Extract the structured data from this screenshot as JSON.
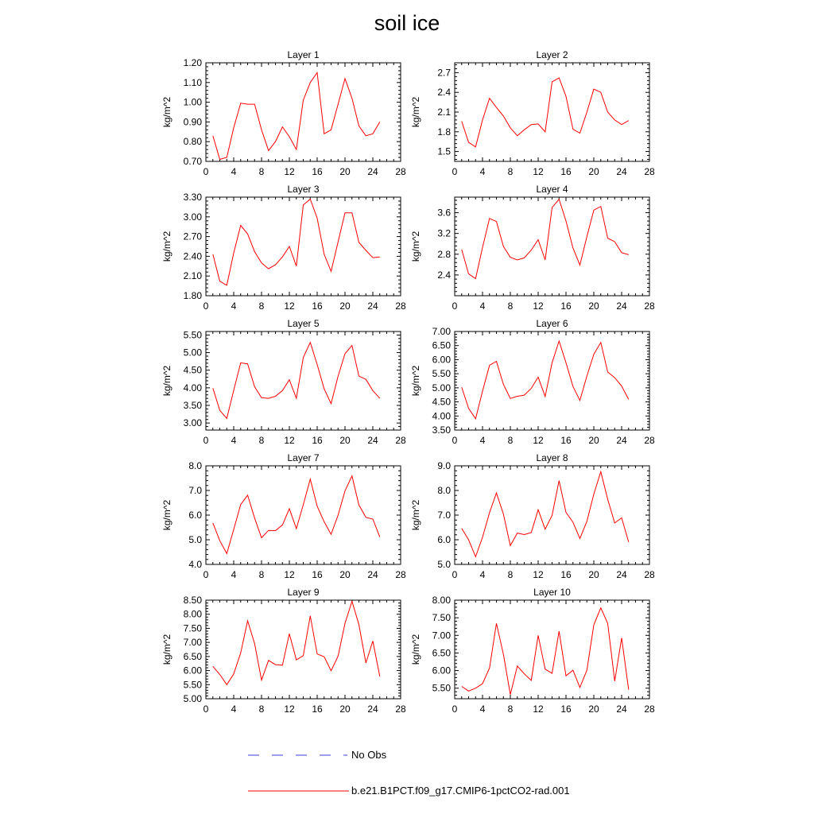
{
  "title": "soil ice",
  "legend": [
    {
      "label": "No Obs",
      "color": "#3b3bdc",
      "style": "dashed"
    },
    {
      "label": "b.e21.B1PCT.f09_g17.CMIP6-1pctCO2-rad.001",
      "color": "#ff0000",
      "style": "solid"
    }
  ],
  "chart_data": [
    {
      "type": "line",
      "title": "Layer 1",
      "ylabel": "kg/m^2",
      "xlim": [
        0,
        28
      ],
      "xticks": [
        0,
        4,
        8,
        12,
        16,
        20,
        24,
        28
      ],
      "ylim": [
        0.7,
        1.2
      ],
      "yticks": [
        0.7,
        0.8,
        0.9,
        1.0,
        1.1,
        1.2
      ],
      "ytick_labels": [
        "0.70",
        "0.80",
        "0.90",
        "1.00",
        "1.10",
        "1.20"
      ],
      "x": [
        1,
        2,
        3,
        4,
        5,
        6,
        7,
        8,
        9,
        10,
        11,
        12,
        13,
        14,
        15,
        16,
        17,
        18,
        19,
        20,
        21,
        22,
        23,
        24,
        25
      ],
      "series": [
        {
          "color": "#ff0000",
          "values": [
            0.83,
            0.71,
            0.72,
            0.87,
            0.995,
            0.99,
            0.99,
            0.86,
            0.755,
            0.8,
            0.875,
            0.825,
            0.76,
            1.01,
            1.1,
            1.15,
            0.84,
            0.86,
            0.99,
            1.12,
            1.02,
            0.88,
            0.83,
            0.84,
            0.9
          ]
        }
      ]
    },
    {
      "type": "line",
      "title": "Layer 2",
      "ylabel": "kg/m^2",
      "xlim": [
        0,
        28
      ],
      "xticks": [
        0,
        4,
        8,
        12,
        16,
        20,
        24,
        28
      ],
      "ylim": [
        1.35,
        2.85
      ],
      "yticks": [
        1.5,
        1.8,
        2.1,
        2.4,
        2.7
      ],
      "ytick_labels": [
        "1.5",
        "1.8",
        "2.1",
        "2.4",
        "2.7"
      ],
      "x": [
        1,
        2,
        3,
        4,
        5,
        6,
        7,
        8,
        9,
        10,
        11,
        12,
        13,
        14,
        15,
        16,
        17,
        18,
        19,
        20,
        21,
        22,
        23,
        24,
        25
      ],
      "series": [
        {
          "color": "#ff0000",
          "values": [
            1.96,
            1.64,
            1.57,
            1.98,
            2.31,
            2.17,
            2.04,
            1.86,
            1.74,
            1.83,
            1.91,
            1.92,
            1.8,
            2.56,
            2.62,
            2.34,
            1.84,
            1.78,
            2.1,
            2.45,
            2.4,
            2.1,
            1.98,
            1.91,
            1.97
          ]
        }
      ]
    },
    {
      "type": "line",
      "title": "Layer 3",
      "ylabel": "kg/m^2",
      "xlim": [
        0,
        28
      ],
      "xticks": [
        0,
        4,
        8,
        12,
        16,
        20,
        24,
        28
      ],
      "ylim": [
        1.8,
        3.3
      ],
      "yticks": [
        1.8,
        2.1,
        2.4,
        2.7,
        3.0,
        3.3
      ],
      "ytick_labels": [
        "1.80",
        "2.10",
        "2.40",
        "2.70",
        "3.00",
        "3.30"
      ],
      "x": [
        1,
        2,
        3,
        4,
        5,
        6,
        7,
        8,
        9,
        10,
        11,
        12,
        13,
        14,
        15,
        16,
        17,
        18,
        19,
        20,
        21,
        22,
        23,
        24,
        25
      ],
      "series": [
        {
          "color": "#ff0000",
          "values": [
            2.43,
            2.02,
            1.96,
            2.45,
            2.87,
            2.74,
            2.47,
            2.3,
            2.21,
            2.27,
            2.39,
            2.55,
            2.25,
            3.18,
            3.27,
            2.98,
            2.43,
            2.17,
            2.62,
            3.06,
            3.06,
            2.61,
            2.49,
            2.38,
            2.39
          ]
        }
      ]
    },
    {
      "type": "line",
      "title": "Layer 4",
      "ylabel": "kg/m^2",
      "xlim": [
        0,
        28
      ],
      "xticks": [
        0,
        4,
        8,
        12,
        16,
        20,
        24,
        28
      ],
      "ylim": [
        2.0,
        3.9
      ],
      "yticks": [
        2.4,
        2.8,
        3.2,
        3.6
      ],
      "ytick_labels": [
        "2.4",
        "2.8",
        "3.2",
        "3.6"
      ],
      "x": [
        1,
        2,
        3,
        4,
        5,
        6,
        7,
        8,
        9,
        10,
        11,
        12,
        13,
        14,
        15,
        16,
        17,
        18,
        19,
        20,
        21,
        22,
        23,
        24,
        25
      ],
      "series": [
        {
          "color": "#ff0000",
          "values": [
            2.89,
            2.42,
            2.33,
            2.93,
            3.49,
            3.43,
            2.95,
            2.74,
            2.69,
            2.73,
            2.88,
            3.08,
            2.69,
            3.7,
            3.86,
            3.44,
            2.92,
            2.59,
            3.14,
            3.65,
            3.72,
            3.11,
            3.04,
            2.83,
            2.79
          ]
        }
      ]
    },
    {
      "type": "line",
      "title": "Layer 5",
      "ylabel": "kg/m^2",
      "xlim": [
        0,
        28
      ],
      "xticks": [
        0,
        4,
        8,
        12,
        16,
        20,
        24,
        28
      ],
      "ylim": [
        2.8,
        5.6
      ],
      "yticks": [
        3.0,
        3.5,
        4.0,
        4.5,
        5.0,
        5.5
      ],
      "ytick_labels": [
        "3.00",
        "3.50",
        "4.00",
        "4.50",
        "5.00",
        "5.50"
      ],
      "x": [
        1,
        2,
        3,
        4,
        5,
        6,
        7,
        8,
        9,
        10,
        11,
        12,
        13,
        14,
        15,
        16,
        17,
        18,
        19,
        20,
        21,
        22,
        23,
        24,
        25
      ],
      "series": [
        {
          "color": "#ff0000",
          "values": [
            3.99,
            3.36,
            3.13,
            3.93,
            4.71,
            4.68,
            4.03,
            3.72,
            3.7,
            3.76,
            3.92,
            4.23,
            3.7,
            4.86,
            5.29,
            4.66,
            3.97,
            3.55,
            4.33,
            4.97,
            5.2,
            4.33,
            4.24,
            3.92,
            3.7
          ]
        }
      ]
    },
    {
      "type": "line",
      "title": "Layer 6",
      "ylabel": "kg/m^2",
      "xlim": [
        0,
        28
      ],
      "xticks": [
        0,
        4,
        8,
        12,
        16,
        20,
        24,
        28
      ],
      "ylim": [
        3.5,
        7.0
      ],
      "yticks": [
        3.5,
        4.0,
        4.5,
        5.0,
        5.5,
        6.0,
        6.5,
        7.0
      ],
      "ytick_labels": [
        "3.50",
        "4.00",
        "4.50",
        "5.00",
        "5.50",
        "6.00",
        "6.50",
        "7.00"
      ],
      "x": [
        1,
        2,
        3,
        4,
        5,
        6,
        7,
        8,
        9,
        10,
        11,
        12,
        13,
        14,
        15,
        16,
        17,
        18,
        19,
        20,
        21,
        22,
        23,
        24,
        25
      ],
      "series": [
        {
          "color": "#ff0000",
          "values": [
            5.02,
            4.27,
            3.9,
            4.88,
            5.8,
            5.94,
            5.12,
            4.62,
            4.7,
            4.74,
            4.98,
            5.38,
            4.69,
            5.89,
            6.66,
            5.89,
            5.05,
            4.55,
            5.42,
            6.19,
            6.61,
            5.56,
            5.36,
            5.06,
            4.59
          ]
        }
      ]
    },
    {
      "type": "line",
      "title": "Layer 7",
      "ylabel": "kg/m^2",
      "xlim": [
        0,
        28
      ],
      "xticks": [
        0,
        4,
        8,
        12,
        16,
        20,
        24,
        28
      ],
      "ylim": [
        4.0,
        8.0
      ],
      "yticks": [
        4.0,
        5.0,
        6.0,
        7.0,
        8.0
      ],
      "ytick_labels": [
        "4.0",
        "5.0",
        "6.0",
        "7.0",
        "8.0"
      ],
      "x": [
        1,
        2,
        3,
        4,
        5,
        6,
        7,
        8,
        9,
        10,
        11,
        12,
        13,
        14,
        15,
        16,
        17,
        18,
        19,
        20,
        21,
        22,
        23,
        24,
        25
      ],
      "series": [
        {
          "color": "#ff0000",
          "values": [
            5.68,
            4.96,
            4.44,
            5.42,
            6.43,
            6.81,
            5.88,
            5.08,
            5.38,
            5.37,
            5.6,
            6.26,
            5.45,
            6.42,
            7.46,
            6.36,
            5.73,
            5.22,
            6.0,
            6.98,
            7.59,
            6.41,
            5.91,
            5.84,
            5.11
          ]
        }
      ]
    },
    {
      "type": "line",
      "title": "Layer 8",
      "ylabel": "kg/m^2",
      "xlim": [
        0,
        28
      ],
      "xticks": [
        0,
        4,
        8,
        12,
        16,
        20,
        24,
        28
      ],
      "ylim": [
        5.0,
        9.0
      ],
      "yticks": [
        5.0,
        6.0,
        7.0,
        8.0,
        9.0
      ],
      "ytick_labels": [
        "5.0",
        "6.0",
        "7.0",
        "8.0",
        "9.0"
      ],
      "x": [
        1,
        2,
        3,
        4,
        5,
        6,
        7,
        8,
        9,
        10,
        11,
        12,
        13,
        14,
        15,
        16,
        17,
        18,
        19,
        20,
        21,
        22,
        23,
        24,
        25
      ],
      "series": [
        {
          "color": "#ff0000",
          "values": [
            6.46,
            6.0,
            5.31,
            6.1,
            7.1,
            7.9,
            7.04,
            5.76,
            6.27,
            6.21,
            6.29,
            7.22,
            6.43,
            6.99,
            8.4,
            7.11,
            6.71,
            6.05,
            6.75,
            7.85,
            8.76,
            7.64,
            6.68,
            6.89,
            5.91
          ]
        }
      ]
    },
    {
      "type": "line",
      "title": "Layer 9",
      "ylabel": "kg/m^2",
      "xlim": [
        0,
        28
      ],
      "xticks": [
        0,
        4,
        8,
        12,
        16,
        20,
        24,
        28
      ],
      "ylim": [
        5.0,
        8.5
      ],
      "yticks": [
        5.0,
        5.5,
        6.0,
        6.5,
        7.0,
        7.5,
        8.0,
        8.5
      ],
      "ytick_labels": [
        "5.00",
        "5.50",
        "6.00",
        "6.50",
        "7.00",
        "7.50",
        "8.00",
        "8.50"
      ],
      "x": [
        1,
        2,
        3,
        4,
        5,
        6,
        7,
        8,
        9,
        10,
        11,
        12,
        13,
        14,
        15,
        16,
        17,
        18,
        19,
        20,
        21,
        22,
        23,
        24,
        25
      ],
      "series": [
        {
          "color": "#ff0000",
          "values": [
            6.15,
            5.86,
            5.5,
            5.88,
            6.63,
            7.77,
            6.96,
            5.66,
            6.36,
            6.21,
            6.19,
            7.31,
            6.38,
            6.53,
            7.94,
            6.59,
            6.49,
            5.99,
            6.51,
            7.68,
            8.46,
            7.63,
            6.27,
            7.05,
            5.79
          ]
        }
      ]
    },
    {
      "type": "line",
      "title": "Layer 10",
      "ylabel": "kg/m^2",
      "xlim": [
        0,
        28
      ],
      "xticks": [
        0,
        4,
        8,
        12,
        16,
        20,
        24,
        28
      ],
      "ylim": [
        5.2,
        8.0
      ],
      "yticks": [
        5.5,
        6.0,
        6.5,
        7.0,
        7.5,
        8.0
      ],
      "ytick_labels": [
        "5.50",
        "6.00",
        "6.50",
        "7.00",
        "7.50",
        "8.00"
      ],
      "x": [
        1,
        2,
        3,
        4,
        5,
        6,
        7,
        8,
        9,
        10,
        11,
        12,
        13,
        14,
        15,
        16,
        17,
        18,
        19,
        20,
        21,
        22,
        23,
        24,
        25
      ],
      "series": [
        {
          "color": "#ff0000",
          "values": [
            5.55,
            5.42,
            5.5,
            5.63,
            6.07,
            7.34,
            6.46,
            5.32,
            6.13,
            5.91,
            5.72,
            7.0,
            6.04,
            5.92,
            7.12,
            5.85,
            6.01,
            5.52,
            6.01,
            7.3,
            7.78,
            7.34,
            5.7,
            6.93,
            5.46
          ]
        }
      ]
    }
  ]
}
